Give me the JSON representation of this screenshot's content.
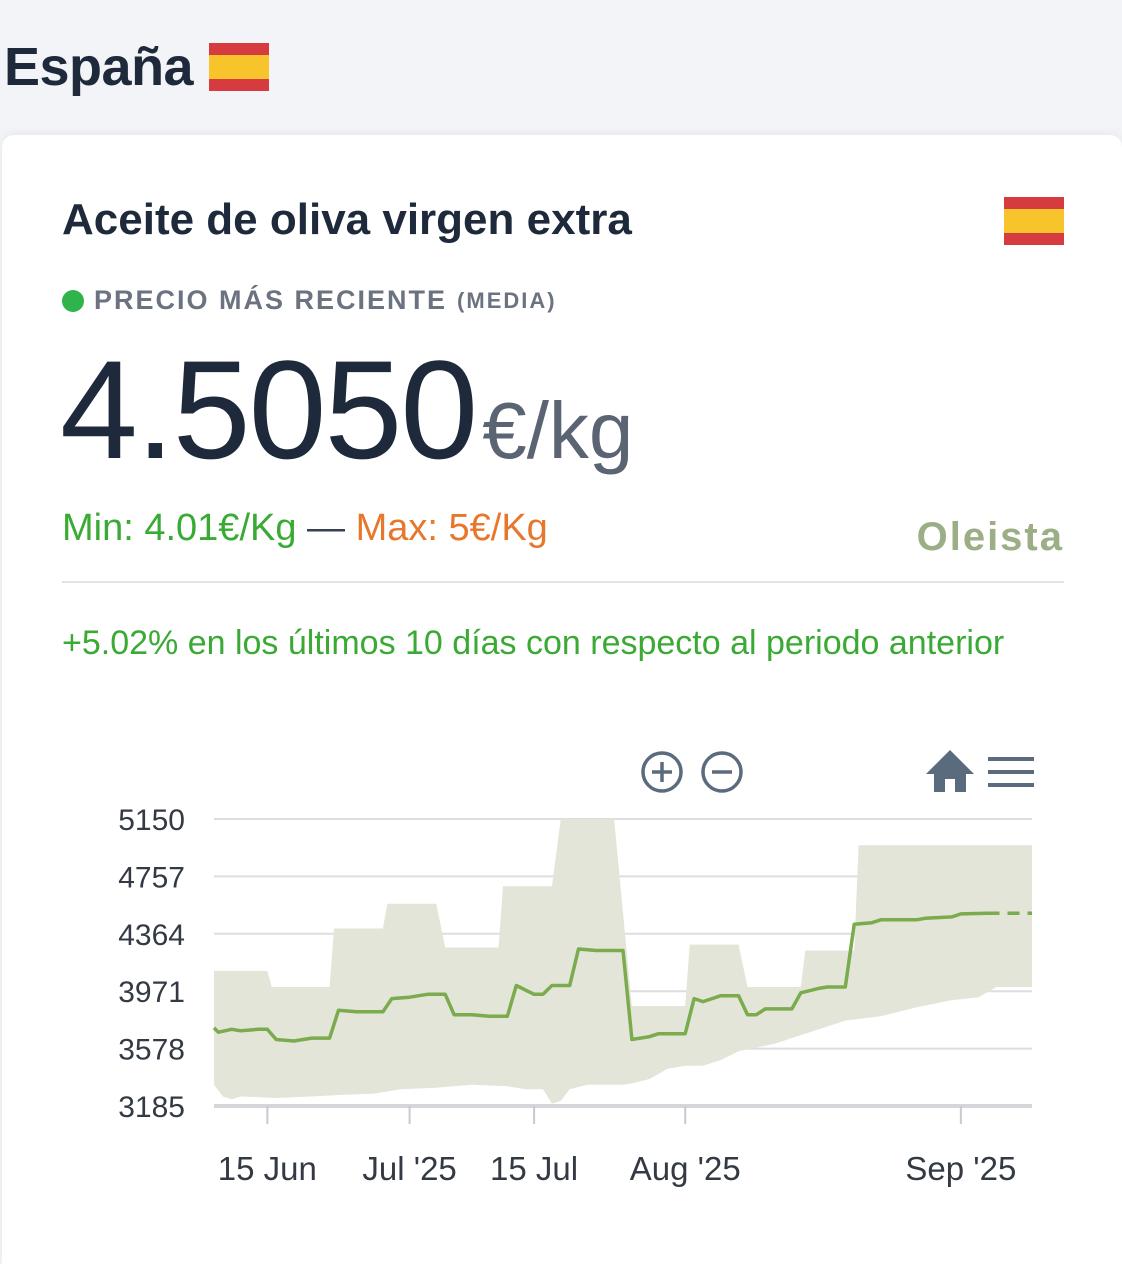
{
  "page": {
    "title": "España"
  },
  "flag": {
    "red": "#d63b3f",
    "yellow": "#f7c52b"
  },
  "card": {
    "title": "Aceite de oliva virgen extra",
    "status_label": "PRECIO MÁS RECIENTE",
    "status_sub": "(MEDIA)",
    "status_color": "#2fb34a",
    "price": "4.5050",
    "unit": "€/kg",
    "min_text": "Min: 4.01€/Kg",
    "separator": " — ",
    "max_text": "Max: 5€/Kg",
    "source_logo": "Oleista",
    "change_text": "+5.02% en los últimos 10 días con respecto al periodo anterior"
  },
  "toolbar": {
    "zoom_in_icon": "plus-circle-icon",
    "zoom_out_icon": "minus-circle-icon",
    "home_icon": "home-icon",
    "menu_icon": "hamburger-menu-icon"
  },
  "chart_data": {
    "type": "line",
    "y_ticks": [
      "5150",
      "4757",
      "4364",
      "3971",
      "3578",
      "3185"
    ],
    "ylim": [
      3185,
      5150
    ],
    "x_ticks": [
      {
        "label": "15 Jun",
        "day": 15
      },
      {
        "label": "Jul '25",
        "day": 31
      },
      {
        "label": "15 Jul",
        "day": 45
      },
      {
        "label": "Aug '25",
        "day": 62
      },
      {
        "label": "Sep '25",
        "day": 93
      }
    ],
    "x_range_days": [
      9,
      101
    ],
    "grid": true,
    "colors": {
      "line": "#7aab4c",
      "band": "#e4e5d9",
      "grid": "#dcdee2"
    },
    "series": [
      {
        "values": [
          [
            9,
            3720
          ],
          [
            9.5,
            3690
          ],
          [
            11,
            3710
          ],
          [
            12,
            3700
          ],
          [
            14,
            3710
          ],
          [
            15,
            3710
          ],
          [
            16,
            3640
          ],
          [
            18,
            3630
          ],
          [
            20,
            3650
          ],
          [
            22,
            3650
          ],
          [
            23,
            3840
          ],
          [
            25,
            3830
          ],
          [
            27,
            3830
          ],
          [
            28,
            3830
          ],
          [
            29,
            3920
          ],
          [
            31,
            3930
          ],
          [
            33,
            3950
          ],
          [
            35,
            3950
          ],
          [
            36,
            3810
          ],
          [
            38,
            3810
          ],
          [
            40,
            3800
          ],
          [
            42,
            3800
          ],
          [
            43,
            4010
          ],
          [
            45,
            3950
          ],
          [
            46,
            3950
          ],
          [
            47,
            4010
          ],
          [
            49,
            4010
          ],
          [
            50,
            4260
          ],
          [
            52,
            4250
          ],
          [
            54,
            4250
          ],
          [
            55,
            4250
          ],
          [
            56,
            3640
          ],
          [
            58,
            3660
          ],
          [
            59,
            3680
          ],
          [
            61,
            3680
          ],
          [
            62,
            3680
          ],
          [
            63,
            3920
          ],
          [
            64,
            3900
          ],
          [
            66,
            3940
          ],
          [
            68,
            3940
          ],
          [
            69,
            3810
          ],
          [
            70,
            3810
          ],
          [
            71,
            3850
          ],
          [
            74,
            3850
          ],
          [
            75,
            3960
          ],
          [
            77,
            3990
          ],
          [
            78,
            4000
          ],
          [
            80,
            4000
          ],
          [
            81,
            4430
          ],
          [
            83,
            4440
          ],
          [
            84,
            4460
          ],
          [
            88,
            4460
          ],
          [
            89,
            4470
          ],
          [
            92,
            4480
          ],
          [
            93,
            4500
          ],
          [
            96,
            4505
          ],
          [
            97,
            4505
          ],
          [
            101,
            4505
          ]
        ]
      }
    ],
    "band": {
      "upper": [
        [
          9,
          4110
        ],
        [
          15,
          4110
        ],
        [
          15.5,
          4000
        ],
        [
          22,
          4000
        ],
        [
          22.5,
          4400
        ],
        [
          28,
          4400
        ],
        [
          28.5,
          4570
        ],
        [
          34,
          4570
        ],
        [
          35,
          4270
        ],
        [
          41,
          4270
        ],
        [
          41.5,
          4690
        ],
        [
          47,
          4690
        ],
        [
          48,
          5150
        ],
        [
          54,
          5150
        ],
        [
          56,
          3870
        ],
        [
          62,
          3870
        ],
        [
          62.5,
          4290
        ],
        [
          68,
          4290
        ],
        [
          69,
          4000
        ],
        [
          75,
          4000
        ],
        [
          75.5,
          4250
        ],
        [
          81,
          4250
        ],
        [
          81.5,
          4970
        ],
        [
          101,
          4970
        ]
      ],
      "lower": [
        [
          101,
          4000
        ],
        [
          97,
          4000
        ],
        [
          95,
          3930
        ],
        [
          92,
          3910
        ],
        [
          88,
          3860
        ],
        [
          84,
          3800
        ],
        [
          80,
          3770
        ],
        [
          76,
          3690
        ],
        [
          72,
          3610
        ],
        [
          68,
          3560
        ],
        [
          66,
          3500
        ],
        [
          64,
          3460
        ],
        [
          62,
          3460
        ],
        [
          60,
          3440
        ],
        [
          58,
          3370
        ],
        [
          56,
          3340
        ],
        [
          55,
          3330
        ],
        [
          51,
          3330
        ],
        [
          49,
          3300
        ],
        [
          48,
          3220
        ],
        [
          47,
          3200
        ],
        [
          46,
          3300
        ],
        [
          44,
          3300
        ],
        [
          42,
          3320
        ],
        [
          38,
          3330
        ],
        [
          34,
          3310
        ],
        [
          30,
          3300
        ],
        [
          27,
          3270
        ],
        [
          23,
          3260
        ],
        [
          20,
          3250
        ],
        [
          16,
          3240
        ],
        [
          12,
          3250
        ],
        [
          11,
          3230
        ],
        [
          10,
          3250
        ],
        [
          9,
          3330
        ]
      ]
    }
  }
}
